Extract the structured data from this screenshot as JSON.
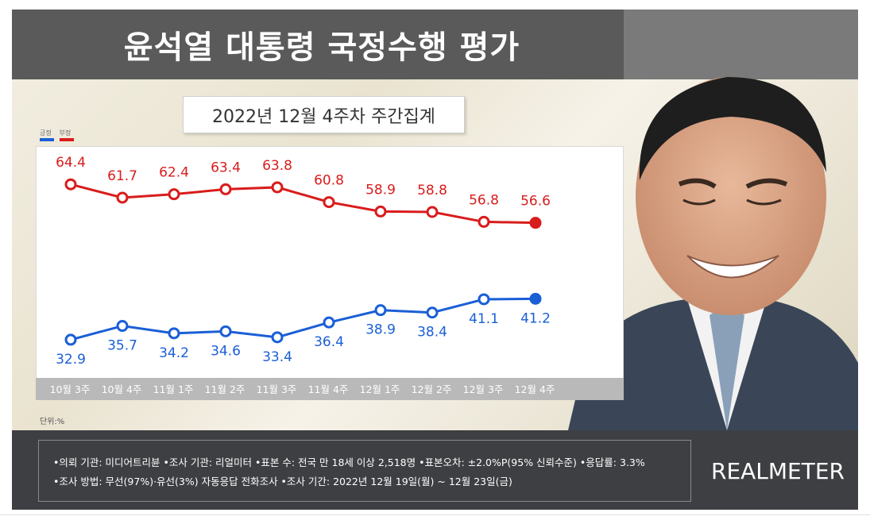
{
  "header": {
    "title": "윤석열 대통령 국정수행 평가",
    "subtitle": "2022년 12월 4주차 주간집계"
  },
  "legend": [
    {
      "label": "긍정",
      "color": "#1a5fd6"
    },
    {
      "label": "부정",
      "color": "#d91c1c"
    }
  ],
  "unit_label": "단위:%",
  "chart_data": {
    "type": "line",
    "title": "윤석열 대통령 국정수행 평가",
    "subtitle": "2022년 12월 4주차 주간집계",
    "categories": [
      "10월 3주",
      "10월 4주",
      "11월 1주",
      "11월 2주",
      "11월 3주",
      "11월 4주",
      "12월 1주",
      "12월 2주",
      "12월 3주",
      "12월 4주"
    ],
    "series": [
      {
        "name": "부정",
        "color": "#d91c1c",
        "values": [
          64.4,
          61.7,
          62.4,
          63.4,
          63.8,
          60.8,
          58.9,
          58.8,
          56.8,
          56.6
        ]
      },
      {
        "name": "긍정",
        "color": "#1a5fd6",
        "values": [
          32.9,
          35.7,
          34.2,
          34.6,
          33.4,
          36.4,
          38.9,
          38.4,
          41.1,
          41.2
        ]
      }
    ],
    "ylim": [
      25,
      72
    ],
    "grid": false,
    "legend_position": "top-left"
  },
  "footer": {
    "line1": "•의뢰 기관: 미디어트리뷴 •조사 기관: 리얼미터 •표본 수: 전국 만 18세 이상 2,518명 •표본오차: ±2.0%P(95% 신뢰수준) •응답률: 3.3%",
    "line2": "•조사 방법: 무선(97%)·유선(3%) 자동응답 전화조사 •조사 기간: 2022년 12월 19일(월) ~ 12월 23일(금)",
    "brand": "REALMETER"
  }
}
